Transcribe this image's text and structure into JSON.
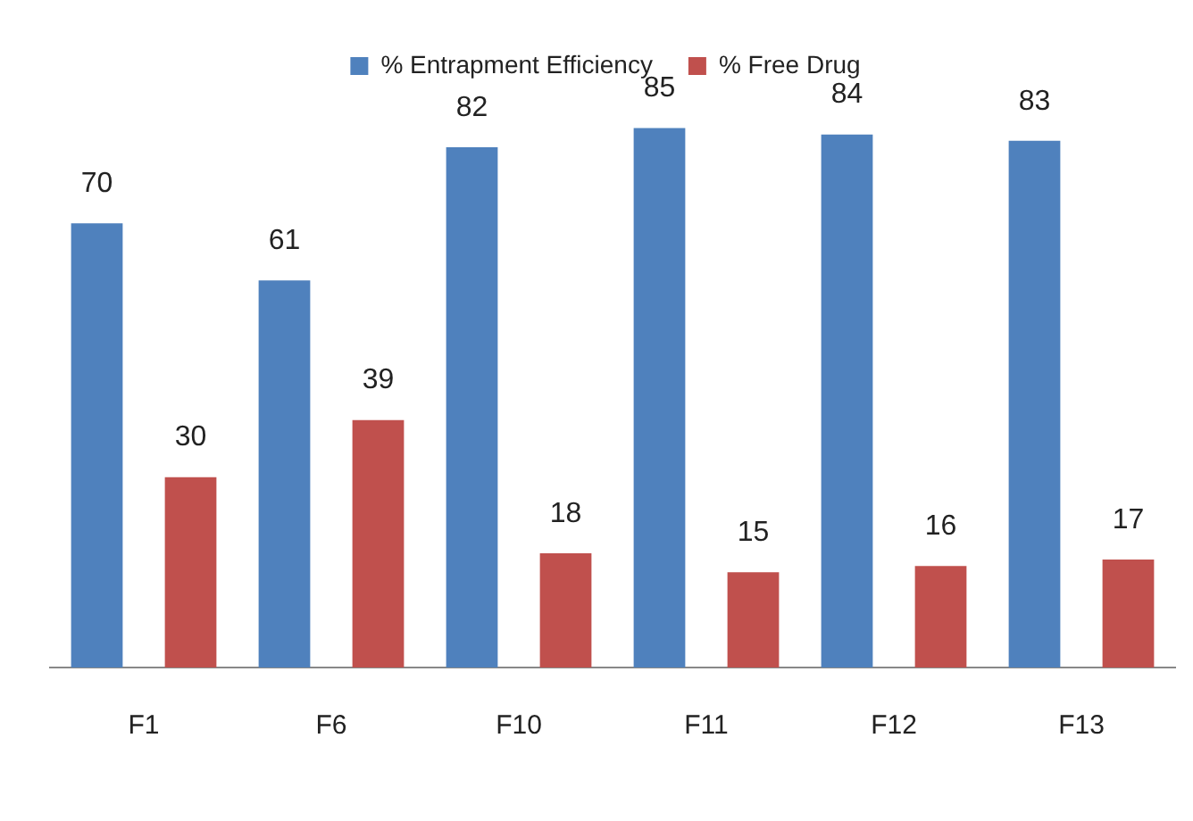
{
  "chart_data": {
    "type": "bar",
    "categories": [
      "F1",
      "F6",
      "F10",
      "F11",
      "F12",
      "F13"
    ],
    "series": [
      {
        "name": "% Entrapment Efficiency",
        "color": "#4f81bd",
        "values": [
          70,
          61,
          82,
          85,
          84,
          83
        ]
      },
      {
        "name": "% Free Drug",
        "color": "#c0504d",
        "values": [
          30,
          39,
          18,
          15,
          16,
          17
        ]
      }
    ],
    "relative": false,
    "data_labels": true,
    "legend": "top",
    "grid": false
  }
}
